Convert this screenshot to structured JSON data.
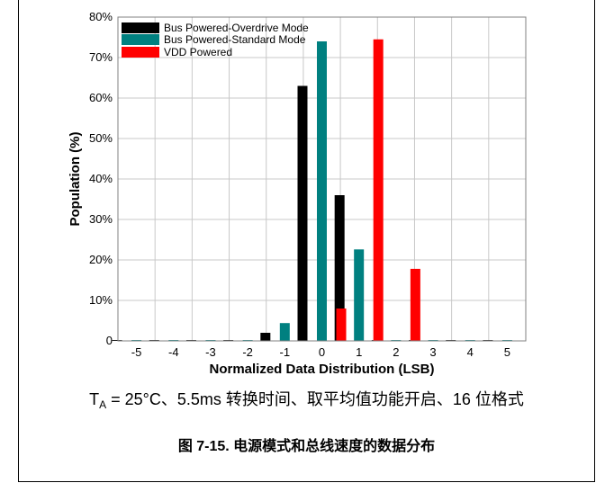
{
  "chart_data": {
    "type": "bar",
    "categories": [
      "-5",
      "-4",
      "-3",
      "-2",
      "-1",
      "0",
      "1",
      "2",
      "3",
      "4",
      "5"
    ],
    "series": [
      {
        "name": "Bus Powered-Overdrive Mode",
        "color": "#000000",
        "values": [
          0.2,
          0.2,
          0.2,
          0.2,
          2,
          63,
          36,
          0.2,
          0.2,
          0.2,
          0.2
        ]
      },
      {
        "name": "Bus Powered-Standard Mode",
        "color": "#008080",
        "values": [
          0.2,
          0.2,
          0.2,
          0.2,
          4.4,
          74,
          22.6,
          0.2,
          0.2,
          0.2,
          0.2
        ]
      },
      {
        "name": "VDD Powered",
        "color": "#ff0000",
        "values": [
          0,
          0,
          0,
          0,
          0,
          8,
          74.5,
          17.8,
          0,
          0,
          0
        ]
      }
    ],
    "ylim": [
      0,
      80
    ],
    "yticks": [
      "0",
      "10%",
      "20%",
      "30%",
      "40%",
      "50%",
      "60%",
      "70%",
      "80%"
    ],
    "xlabel": "Normalized Data Distribution (LSB)",
    "ylabel": "Population (%)",
    "grid": true,
    "legend": "top-left"
  },
  "note": {
    "t_symbol": "T",
    "t_subscript": "A",
    "text": " = 25°C、5.5ms 转换时间、取平均值功能开启、16 位格式"
  },
  "caption": "图 7-15. 电源模式和总线速度的数据分布"
}
